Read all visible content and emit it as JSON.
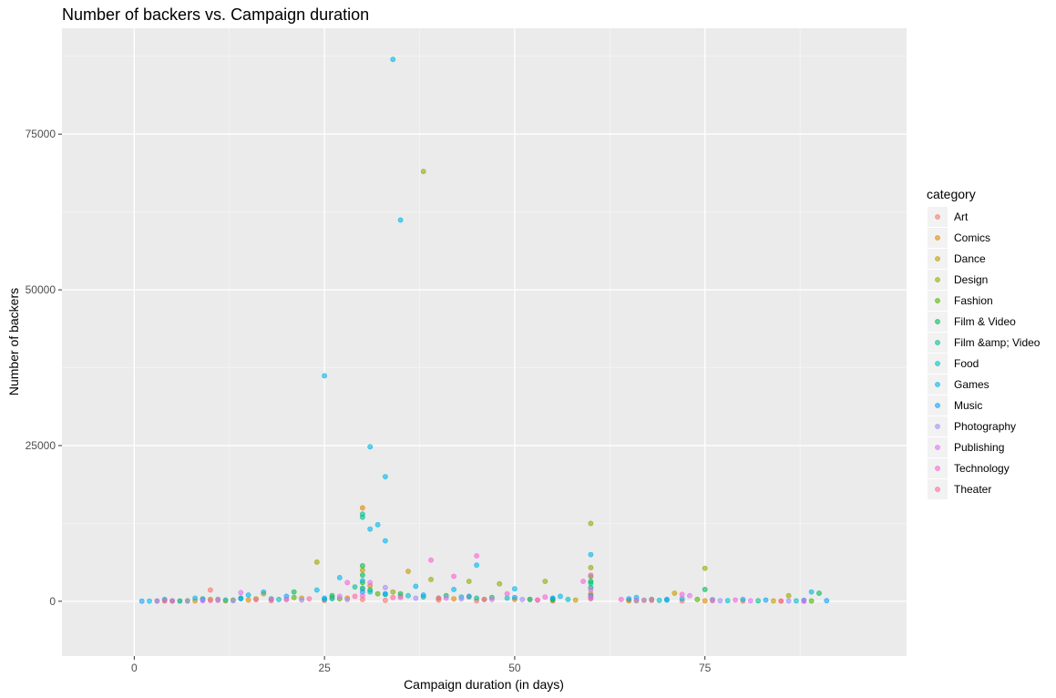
{
  "chart_data": {
    "type": "scatter",
    "title": "Number of backers vs. Campaign duration",
    "xlabel": "Campaign duration (in days)",
    "ylabel": "Number of backers",
    "xlim": [
      -9.5,
      101.5
    ],
    "ylim": [
      -8800,
      92000
    ],
    "x_ticks": [
      0,
      25,
      50,
      75
    ],
    "x_tick_labels": [
      "0",
      "25",
      "50",
      "75"
    ],
    "y_ticks": [
      0,
      25000,
      50000,
      75000
    ],
    "y_tick_labels": [
      "0",
      "25000",
      "50000",
      "75000"
    ],
    "x_grid_minor": [
      12.5,
      37.5,
      62.5,
      87.5
    ],
    "y_grid_minor": [
      12500,
      37500,
      62500,
      87500
    ],
    "grid": true,
    "legend_title": "category",
    "legend_position": "right",
    "series": [
      {
        "name": "Art",
        "color": "#F8766D",
        "points": [
          [
            5,
            40
          ],
          [
            10,
            1800
          ],
          [
            18,
            90
          ],
          [
            25,
            120
          ],
          [
            30,
            300
          ],
          [
            33,
            150
          ],
          [
            40,
            200
          ],
          [
            45,
            80
          ],
          [
            55,
            60
          ],
          [
            60,
            400
          ],
          [
            65,
            100
          ],
          [
            72,
            50
          ],
          [
            80,
            30
          ],
          [
            88,
            20
          ]
        ]
      },
      {
        "name": "Comics",
        "color": "#E38900",
        "points": [
          [
            8,
            60
          ],
          [
            15,
            200
          ],
          [
            20,
            300
          ],
          [
            28,
            500
          ],
          [
            30,
            15000
          ],
          [
            31,
            2500
          ],
          [
            35,
            800
          ],
          [
            42,
            400
          ],
          [
            50,
            300
          ],
          [
            60,
            1200
          ],
          [
            67,
            150
          ],
          [
            75,
            80
          ],
          [
            85,
            40
          ]
        ]
      },
      {
        "name": "Dance",
        "color": "#C49A00",
        "points": [
          [
            6,
            30
          ],
          [
            12,
            80
          ],
          [
            17,
            1200
          ],
          [
            22,
            500
          ],
          [
            26,
            600
          ],
          [
            30,
            5000
          ],
          [
            36,
            4800
          ],
          [
            44,
            700
          ],
          [
            52,
            300
          ],
          [
            58,
            200
          ],
          [
            65,
            120
          ],
          [
            71,
            1300
          ],
          [
            84,
            60
          ]
        ]
      },
      {
        "name": "Design",
        "color": "#99A800",
        "points": [
          [
            4,
            100
          ],
          [
            10,
            300
          ],
          [
            16,
            400
          ],
          [
            24,
            6300
          ],
          [
            30,
            2000
          ],
          [
            34,
            1500
          ],
          [
            38,
            69000
          ],
          [
            39,
            3500
          ],
          [
            44,
            3200
          ],
          [
            48,
            2800
          ],
          [
            54,
            3200
          ],
          [
            60,
            12500
          ],
          [
            60,
            5400
          ],
          [
            75,
            5300
          ],
          [
            86,
            900
          ]
        ]
      },
      {
        "name": "Fashion",
        "color": "#53B400",
        "points": [
          [
            7,
            80
          ],
          [
            13,
            200
          ],
          [
            21,
            600
          ],
          [
            27,
            400
          ],
          [
            30,
            3000
          ],
          [
            32,
            1200
          ],
          [
            40,
            500
          ],
          [
            46,
            300
          ],
          [
            55,
            200
          ],
          [
            60,
            4000
          ],
          [
            66,
            100
          ],
          [
            74,
            300
          ],
          [
            89,
            50
          ]
        ]
      },
      {
        "name": "Film & Video",
        "color": "#00BC56",
        "points": [
          [
            3,
            50
          ],
          [
            9,
            400
          ],
          [
            14,
            500
          ],
          [
            21,
            1500
          ],
          [
            26,
            900
          ],
          [
            30,
            5700
          ],
          [
            30,
            4200
          ],
          [
            31,
            1800
          ],
          [
            35,
            1200
          ],
          [
            41,
            900
          ],
          [
            47,
            600
          ],
          [
            55,
            400
          ],
          [
            60,
            3200
          ],
          [
            60,
            2200
          ],
          [
            68,
            300
          ],
          [
            75,
            1900
          ],
          [
            90,
            1300
          ]
        ]
      },
      {
        "name": "Film &amp; Video",
        "color": "#00C094",
        "points": [
          [
            5,
            60
          ],
          [
            11,
            300
          ],
          [
            18,
            400
          ],
          [
            25,
            300
          ],
          [
            29,
            2300
          ],
          [
            30,
            14000
          ],
          [
            30,
            13500
          ],
          [
            33,
            1100
          ],
          [
            38,
            700
          ],
          [
            45,
            500
          ],
          [
            52,
            300
          ],
          [
            60,
            2900
          ],
          [
            70,
            200
          ],
          [
            82,
            80
          ]
        ]
      },
      {
        "name": "Food",
        "color": "#00BFC4",
        "points": [
          [
            6,
            50
          ],
          [
            12,
            200
          ],
          [
            19,
            300
          ],
          [
            26,
            400
          ],
          [
            30,
            2100
          ],
          [
            31,
            1500
          ],
          [
            36,
            900
          ],
          [
            43,
            700
          ],
          [
            49,
            500
          ],
          [
            57,
            300
          ],
          [
            60,
            800
          ],
          [
            69,
            150
          ],
          [
            78,
            100
          ],
          [
            87,
            60
          ]
        ]
      },
      {
        "name": "Games",
        "color": "#00B6EB",
        "points": [
          [
            2,
            30
          ],
          [
            8,
            500
          ],
          [
            15,
            1000
          ],
          [
            17,
            1500
          ],
          [
            24,
            1800
          ],
          [
            25,
            36200
          ],
          [
            27,
            3800
          ],
          [
            30,
            3300
          ],
          [
            31,
            11600
          ],
          [
            31,
            24800
          ],
          [
            32,
            12300
          ],
          [
            33,
            20000
          ],
          [
            33,
            9700
          ],
          [
            34,
            87000
          ],
          [
            35,
            61200
          ],
          [
            37,
            2400
          ],
          [
            42,
            1900
          ],
          [
            45,
            5800
          ],
          [
            50,
            2000
          ],
          [
            56,
            800
          ],
          [
            60,
            7500
          ],
          [
            66,
            600
          ],
          [
            72,
            400
          ],
          [
            80,
            300
          ],
          [
            89,
            1500
          ]
        ]
      },
      {
        "name": "Music",
        "color": "#06A4FF",
        "points": [
          [
            1,
            20
          ],
          [
            4,
            300
          ],
          [
            9,
            200
          ],
          [
            14,
            400
          ],
          [
            20,
            800
          ],
          [
            25,
            500
          ],
          [
            30,
            1500
          ],
          [
            33,
            1200
          ],
          [
            38,
            1000
          ],
          [
            44,
            800
          ],
          [
            50,
            600
          ],
          [
            55,
            500
          ],
          [
            60,
            900
          ],
          [
            65,
            400
          ],
          [
            70,
            300
          ],
          [
            76,
            250
          ],
          [
            83,
            200
          ],
          [
            88,
            150
          ],
          [
            91,
            100
          ]
        ]
      },
      {
        "name": "Photography",
        "color": "#A58AFF",
        "points": [
          [
            7,
            40
          ],
          [
            13,
            100
          ],
          [
            22,
            200
          ],
          [
            28,
            300
          ],
          [
            33,
            2200
          ],
          [
            37,
            500
          ],
          [
            43,
            400
          ],
          [
            51,
            300
          ],
          [
            60,
            500
          ],
          [
            67,
            200
          ],
          [
            77,
            100
          ],
          [
            86,
            50
          ]
        ]
      },
      {
        "name": "Publishing",
        "color": "#DF70F8",
        "points": [
          [
            3,
            30
          ],
          [
            9,
            100
          ],
          [
            14,
            1400
          ],
          [
            20,
            300
          ],
          [
            27,
            800
          ],
          [
            31,
            3000
          ],
          [
            35,
            600
          ],
          [
            41,
            500
          ],
          [
            47,
            300
          ],
          [
            53,
            200
          ],
          [
            60,
            1800
          ],
          [
            66,
            150
          ],
          [
            73,
            900
          ],
          [
            81,
            80
          ],
          [
            88,
            40
          ]
        ]
      },
      {
        "name": "Technology",
        "color": "#FB61D7",
        "points": [
          [
            5,
            70
          ],
          [
            11,
            150
          ],
          [
            18,
            300
          ],
          [
            28,
            3000
          ],
          [
            30,
            900
          ],
          [
            39,
            6600
          ],
          [
            42,
            4000
          ],
          [
            45,
            7300
          ],
          [
            49,
            1200
          ],
          [
            54,
            700
          ],
          [
            59,
            3200
          ],
          [
            60,
            4200
          ],
          [
            64,
            300
          ],
          [
            72,
            1100
          ],
          [
            79,
            200
          ]
        ]
      },
      {
        "name": "Theater",
        "color": "#FF66A8",
        "points": [
          [
            4,
            50
          ],
          [
            10,
            120
          ],
          [
            16,
            250
          ],
          [
            23,
            400
          ],
          [
            29,
            800
          ],
          [
            34,
            600
          ],
          [
            40,
            500
          ],
          [
            46,
            300
          ],
          [
            53,
            200
          ],
          [
            60,
            700
          ],
          [
            68,
            150
          ],
          [
            76,
            90
          ],
          [
            85,
            40
          ]
        ]
      }
    ]
  }
}
